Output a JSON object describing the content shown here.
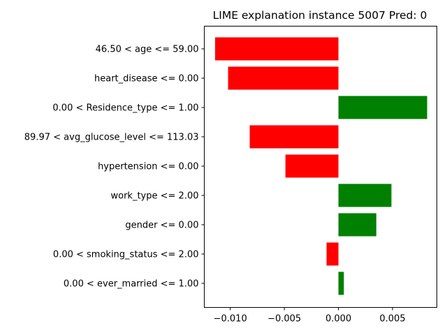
{
  "chart_data": {
    "type": "bar",
    "orientation": "horizontal",
    "title": "LIME explanation instance 5007 Pred: 0",
    "xlabel": "",
    "ylabel": "",
    "categories": [
      "46.50 < age <= 59.00",
      "heart_disease <= 0.00",
      "0.00 < Residence_type <= 1.00",
      "89.97 < avg_glucose_level <= 113.03",
      "hypertension <= 0.00",
      "work_type <= 2.00",
      "gender <= 0.00",
      "0.00 < smoking_status <= 2.00",
      "0.00 < ever_married <= 1.00"
    ],
    "values": [
      -0.0114,
      -0.0102,
      0.0082,
      -0.0082,
      -0.0049,
      0.0049,
      0.0035,
      -0.0011,
      0.0005
    ],
    "xlim": [
      -0.0124,
      0.0091
    ],
    "xticks": [
      -0.01,
      -0.005,
      0.0,
      0.005
    ],
    "xtick_labels": [
      "−0.010",
      "−0.005",
      "0.000",
      "0.005"
    ],
    "grid": false,
    "colors": {
      "positive": "#008000",
      "negative": "#ff0000"
    }
  }
}
